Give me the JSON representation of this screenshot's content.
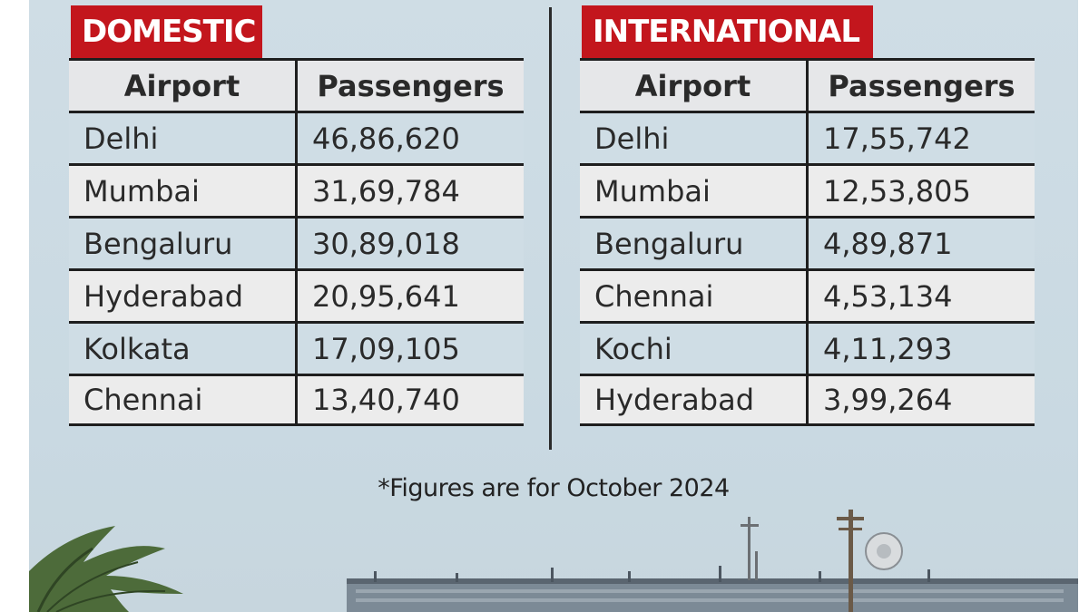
{
  "domestic": {
    "title": "DOMESTIC",
    "headers": [
      "Airport",
      "Passengers"
    ],
    "rows": [
      {
        "airport": "Delhi",
        "passengers": "46,86,620"
      },
      {
        "airport": "Mumbai",
        "passengers": "31,69,784"
      },
      {
        "airport": "Bengaluru",
        "passengers": "30,89,018"
      },
      {
        "airport": "Hyderabad",
        "passengers": "20,95,641"
      },
      {
        "airport": "Kolkata",
        "passengers": "17,09,105"
      },
      {
        "airport": "Chennai",
        "passengers": "13,40,740"
      }
    ]
  },
  "international": {
    "title": "INTERNATIONAL",
    "headers": [
      "Airport",
      "Passengers"
    ],
    "rows": [
      {
        "airport": "Delhi",
        "passengers": "17,55,742"
      },
      {
        "airport": "Mumbai",
        "passengers": "12,53,805"
      },
      {
        "airport": "Bengaluru",
        "passengers": "4,89,871"
      },
      {
        "airport": "Chennai",
        "passengers": "4,53,134"
      },
      {
        "airport": "Kochi",
        "passengers": "4,11,293"
      },
      {
        "airport": "Hyderabad",
        "passengers": "3,99,264"
      }
    ]
  },
  "footnote": "*Figures are for October 2024",
  "colors": {
    "tag_red": "#c3161d",
    "panel_blue": "#cfdde5",
    "row_gray": "#ececec"
  }
}
